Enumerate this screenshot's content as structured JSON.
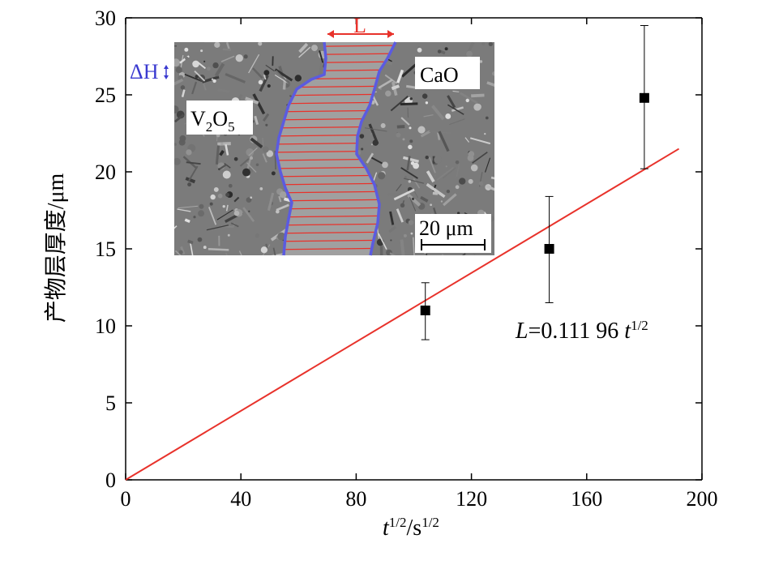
{
  "chart_data": {
    "type": "scatter",
    "xlabel": {
      "var": "t",
      "exp": "1/2",
      "sep": "/s",
      "exp2": "1/2"
    },
    "ylabel": "产物层厚度/μm",
    "xlim": [
      0,
      200
    ],
    "ylim": [
      0,
      30
    ],
    "x_ticks": [
      0,
      40,
      80,
      120,
      160,
      200
    ],
    "y_ticks": [
      0,
      5,
      10,
      15,
      20,
      25,
      30
    ],
    "x_tick_labels": [
      "0",
      "40",
      "80",
      "120",
      "160",
      "200"
    ],
    "y_tick_labels": [
      "0",
      "5",
      "10",
      "15",
      "20",
      "25",
      "30"
    ],
    "points": [
      {
        "x": 104,
        "y": 11.0,
        "err_low": 9.1,
        "err_high": 12.8
      },
      {
        "x": 147,
        "y": 15.0,
        "err_low": 11.5,
        "err_high": 18.4
      },
      {
        "x": 180,
        "y": 24.8,
        "err_low": 20.2,
        "err_high": 29.5
      }
    ],
    "fit": {
      "slope": 0.11196,
      "x_range": [
        0,
        192
      ],
      "label_var": "L",
      "label_eq": "=0.111 96 ",
      "label_t": "t",
      "label_exp": "1/2",
      "color": "#e8322b"
    },
    "inset": {
      "phase_left": "V",
      "phase_left_sub1": "2",
      "phase_left_mid": "O",
      "phase_left_sub2": "5",
      "phase_right": "CaO",
      "thickness_label": "L",
      "height_label": "ΔH",
      "scale_bar": "20 μm",
      "boundary_color": "#5b5be0",
      "hatch_color": "#e8322b"
    }
  }
}
